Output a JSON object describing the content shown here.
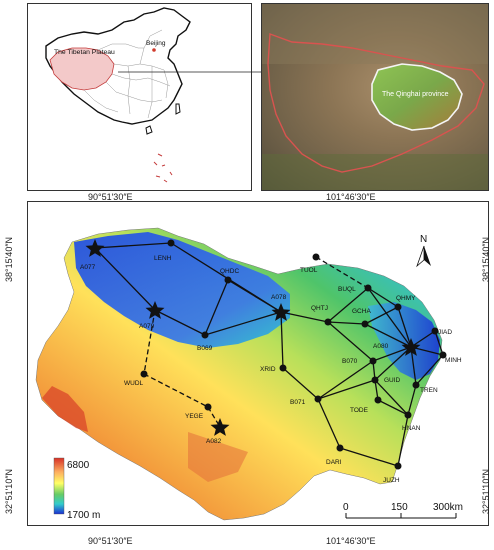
{
  "inset_china": {
    "label_plateau": "The Tibetan Plateau",
    "label_capital": "Beijing"
  },
  "inset_satellite": {
    "label_province": "The Qinghai province"
  },
  "axes": {
    "top_left": "90°51′30″E",
    "top_right": "101°46′30″E",
    "bottom_left": "90°51′30″E",
    "bottom_right": "101°46′30″E",
    "left_top": "38°15′40″N",
    "left_bottom": "32°51′10″N",
    "right_top": "38°15′40″N",
    "right_bottom": "32°51′10″N"
  },
  "north_arrow": "N",
  "legend": {
    "max": "6800",
    "min": "1700 m"
  },
  "scale_bar": {
    "ticks": [
      "0",
      "150",
      "300km"
    ]
  },
  "stations": {
    "A077": "A077",
    "LENH": "LENH",
    "QHDC": "QHDC",
    "TUOL": "TUOL",
    "BUQL": "BUQL",
    "QHMY": "QHMY",
    "A078": "A078",
    "QHTJ": "QHTJ",
    "GCHA": "GCHA",
    "A079": "A079",
    "JIAD": "JIAD",
    "A080": "A080",
    "MINH": "MINH",
    "B069": "B069",
    "B070": "B070",
    "XRID": "XRID",
    "GUID": "GUID",
    "TREN": "TREN",
    "WUDL": "WUDL",
    "B071": "B071",
    "TODE": "TODE",
    "YEGE": "YEGE",
    "HNAN": "HNAN",
    "A082": "A082",
    "DARI": "DARI",
    "JUZH": "JUZH"
  },
  "colors": {
    "high": "#d73027",
    "mid_high": "#fdae61",
    "mid": "#ffff66",
    "mid_low": "#66cc66",
    "low_teal": "#33cccc",
    "low": "#2b5be0",
    "lowest": "#1a2fd1",
    "network": "#111111",
    "qinghai_fill": "#7fb64a",
    "plateau_fill": "#f3c9c9"
  },
  "icons": [
    "star-icon",
    "dot-icon",
    "north-arrow-icon",
    "arrow-icon"
  ]
}
